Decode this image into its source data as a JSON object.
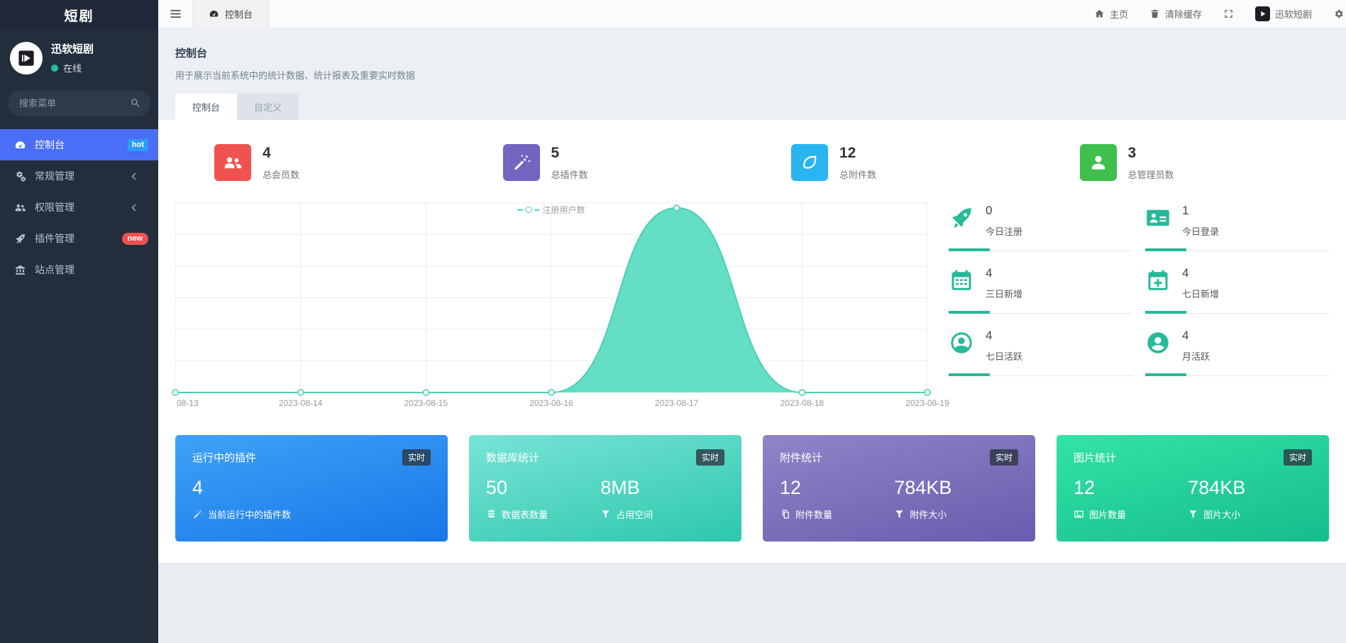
{
  "colors": {
    "accent": "#26b99a",
    "chart_line": "#49d0b2",
    "chart_fill": "#5eddc3",
    "sidebar_active": "#4a6ef5"
  },
  "brand": {
    "title": "短剧"
  },
  "user": {
    "name": "迅软短剧",
    "status": "在线"
  },
  "sidebar": {
    "search_placeholder": "搜索菜单",
    "items": [
      {
        "label": "控制台",
        "icon": "dashboard-icon",
        "badge": "hot",
        "badge_color": "#2b9df4",
        "active": true
      },
      {
        "label": "常规管理",
        "icon": "gears-icon",
        "arrow": true
      },
      {
        "label": "权限管理",
        "icon": "users-icon",
        "arrow": true
      },
      {
        "label": "插件管理",
        "icon": "rocket-icon",
        "badge": "new",
        "badge_color": "#f05050"
      },
      {
        "label": "站点管理",
        "icon": "bank-icon"
      }
    ]
  },
  "topbar": {
    "tab": {
      "label": "控制台",
      "icon": "dashboard-icon"
    },
    "home": "主页",
    "clear_cache": "清除缓存",
    "username": "迅软短剧"
  },
  "page": {
    "title": "控制台",
    "description": "用于展示当前系统中的统计数据、统计报表及重要实时数据",
    "tabs": [
      {
        "label": "控制台",
        "active": true
      },
      {
        "label": "自定义",
        "active": false
      }
    ]
  },
  "stats": [
    {
      "value": "4",
      "label": "总会员数",
      "color": "#ef5350",
      "icon": "users-icon"
    },
    {
      "value": "5",
      "label": "总插件数",
      "color": "#7265c0",
      "icon": "wand-icon"
    },
    {
      "value": "12",
      "label": "总附件数",
      "color": "#29b5f0",
      "icon": "leaf-icon"
    },
    {
      "value": "3",
      "label": "总管理员数",
      "color": "#3fbf4e",
      "icon": "person-icon"
    }
  ],
  "chart_data": {
    "type": "area",
    "title": "",
    "legend": [
      "注册用户数"
    ],
    "legend_position": "top-center",
    "categories": [
      "08-13",
      "2023-08-14",
      "2023-08-15",
      "2023-08-16",
      "2023-08-17",
      "2023-08-18",
      "2023-08-19"
    ],
    "series": [
      {
        "name": "注册用户数",
        "values": [
          0,
          0,
          0,
          0,
          4,
          0,
          0
        ]
      }
    ],
    "xlabel": "",
    "ylabel": "",
    "ylim": [
      0,
      4
    ],
    "grid": true,
    "smooth": true
  },
  "mini_stats": [
    {
      "value": "0",
      "label": "今日注册",
      "icon": "rocket-icon"
    },
    {
      "value": "1",
      "label": "今日登录",
      "icon": "id-card-icon"
    },
    {
      "value": "4",
      "label": "三日新增",
      "icon": "calendar-icon"
    },
    {
      "value": "4",
      "label": "七日新增",
      "icon": "calendar-plus-icon"
    },
    {
      "value": "4",
      "label": "七日活跃",
      "icon": "user-circle-icon"
    },
    {
      "value": "4",
      "label": "月活跃",
      "icon": "user-circle-solid-icon"
    }
  ],
  "cards": [
    {
      "title": "运行中的插件",
      "badge": "实时",
      "gradient": [
        "#3fa2f7",
        "#1677e8"
      ],
      "metrics": [
        {
          "value": "4",
          "label": "当前运行中的插件数",
          "icon": "wand-icon"
        }
      ]
    },
    {
      "title": "数据库统计",
      "badge": "实时",
      "gradient": [
        "#79e3d6",
        "#2cc8ac"
      ],
      "metrics": [
        {
          "value": "50",
          "label": "数据表数量",
          "icon": "database-icon"
        },
        {
          "value": "8MB",
          "label": "占用空间",
          "icon": "funnel-icon"
        }
      ]
    },
    {
      "title": "附件统计",
      "badge": "实时",
      "gradient": [
        "#8f85c8",
        "#685cae"
      ],
      "metrics": [
        {
          "value": "12",
          "label": "附件数量",
          "icon": "copy-icon"
        },
        {
          "value": "784KB",
          "label": "附件大小",
          "icon": "funnel-icon"
        }
      ]
    },
    {
      "title": "图片统计",
      "badge": "实时",
      "gradient": [
        "#33e3a7",
        "#15bd8c"
      ],
      "metrics": [
        {
          "value": "12",
          "label": "图片数量",
          "icon": "image-icon"
        },
        {
          "value": "784KB",
          "label": "图片大小",
          "icon": "funnel-icon"
        }
      ]
    }
  ]
}
